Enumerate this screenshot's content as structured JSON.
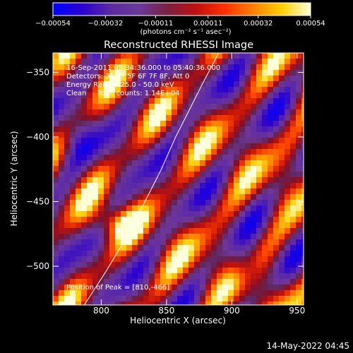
{
  "chart_data": {
    "type": "heatmap",
    "title": "Reconstructed RHESSI Image",
    "xlabel": "Heliocentric X (arcsec)",
    "ylabel": "Heliocentric Y (arcsec)",
    "xlim": [
      763,
      955
    ],
    "ylim": [
      -530,
      -335
    ],
    "x_ticks": [
      800,
      850,
      900,
      950
    ],
    "x_tick_labels": [
      "800",
      "850",
      "900",
      "950"
    ],
    "y_ticks": [
      -350,
      -400,
      -450,
      -500
    ],
    "y_tick_labels": [
      "−350",
      "−400",
      "−450",
      "−500"
    ],
    "colorbar": {
      "label": "(photons cm⁻² s⁻¹ asec⁻²)",
      "range": [
        -0.00054,
        0.00054
      ],
      "tick_values": [
        -0.00054,
        -0.00032,
        -0.00011,
        0.00011,
        0.00032,
        0.00054
      ],
      "tick_labels": [
        "−0.00054",
        "−0.00032",
        "−0.00011",
        "0.00011",
        "0.00032",
        "0.00054"
      ],
      "colormap": "rainbow-blue-to-yellow",
      "colors": [
        "#0000ff",
        "#2a00d0",
        "#5a2aa0",
        "#6a3a9a",
        "#7a2040",
        "#c01010",
        "#ff3000",
        "#ff8000",
        "#ffd000",
        "#ffffe0"
      ]
    },
    "annotations": [
      "16-Sep-2011 05:34:36.000 to 05:40:36.000",
      "Detectors: 3F 4F 5F 6F 7F 8F, Att 0",
      "Energy Range: 25.0 - 50.0 keV",
      "Clean     Total counts: 1.14E+04"
    ],
    "peak_label": "Position of Peak = [810,-466]",
    "peak": {
      "x": 810,
      "y": -466
    },
    "limb_line": [
      [
        787,
        -530
      ],
      [
        803,
        -505
      ],
      [
        815,
        -485
      ],
      [
        826,
        -465
      ],
      [
        835,
        -447
      ],
      [
        846,
        -425
      ],
      [
        857,
        -400
      ],
      [
        867,
        -380
      ],
      [
        878,
        -358
      ],
      [
        890,
        -335
      ]
    ],
    "timestamp": "14-May-2022 04:45"
  }
}
